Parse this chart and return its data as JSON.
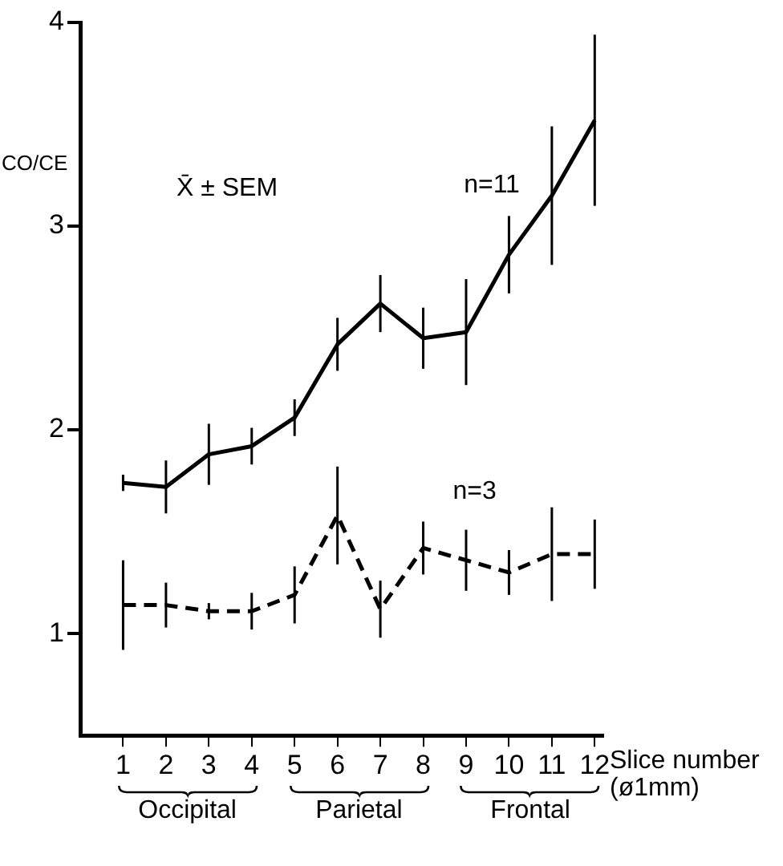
{
  "chart_data": {
    "type": "line",
    "ylabel": "CO/CE",
    "xlabel": "Slice number (ø1mm)",
    "x": [
      1,
      2,
      3,
      4,
      5,
      6,
      7,
      8,
      9,
      10,
      11,
      12
    ],
    "xlim": [
      0,
      12.2
    ],
    "xticks": [
      1,
      2,
      3,
      4,
      5,
      6,
      7,
      8,
      9,
      10,
      11,
      12
    ],
    "ylim": [
      0.5,
      4
    ],
    "yticks": [
      1,
      2,
      3,
      4
    ],
    "grid": false,
    "legend": false,
    "marker": "none",
    "series": [
      {
        "color": "#000000",
        "line_style": "solid",
        "values": [
          1.74,
          1.72,
          1.88,
          1.92,
          2.06,
          2.42,
          2.62,
          2.45,
          2.48,
          2.86,
          3.15,
          3.52
        ],
        "errors": [
          0.04,
          0.13,
          0.15,
          0.09,
          0.09,
          0.13,
          0.14,
          0.15,
          0.26,
          0.19,
          0.34,
          0.42
        ]
      },
      {
        "color": "#000000",
        "line_style": "dashed",
        "values": [
          1.14,
          1.14,
          1.11,
          1.11,
          1.19,
          1.58,
          1.12,
          1.42,
          1.36,
          1.3,
          1.39,
          1.39
        ],
        "errors": [
          0.22,
          0.11,
          0.04,
          0.09,
          0.14,
          0.24,
          0.14,
          0.13,
          0.15,
          0.11,
          0.23,
          0.17
        ]
      }
    ],
    "annotations": [
      "X̄ ± SEM",
      "n=11",
      "n=3",
      "Occipital",
      "Parietal",
      "Frontal"
    ]
  }
}
